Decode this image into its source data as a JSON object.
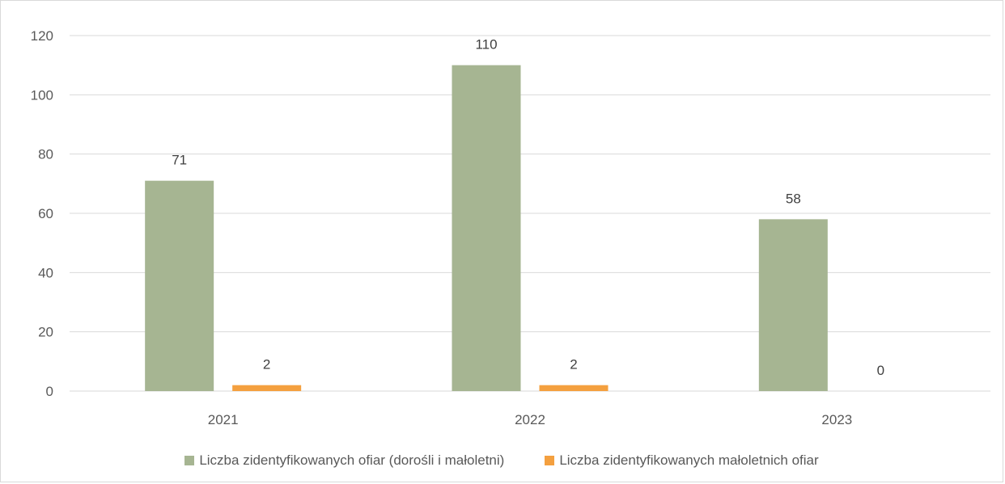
{
  "chart_data": {
    "type": "bar",
    "categories": [
      "2021",
      "2022",
      "2023"
    ],
    "series": [
      {
        "name": "Liczba zidentyfikowanych ofiar (dorośli i małoletni)",
        "values": [
          71,
          110,
          58
        ],
        "color": "#a6b592"
      },
      {
        "name": "Liczba zidentyfikowanych małoletnich ofiar",
        "values": [
          2,
          2,
          0
        ],
        "color": "#f4a03f"
      }
    ],
    "data_labels": [
      [
        "71",
        "110",
        "58"
      ],
      [
        "2",
        "2",
        "0"
      ]
    ],
    "ylim": [
      0,
      120
    ],
    "yticks": [
      "0",
      "20",
      "40",
      "60",
      "80",
      "100",
      "120"
    ],
    "grid": true,
    "legend_position": "bottom"
  }
}
